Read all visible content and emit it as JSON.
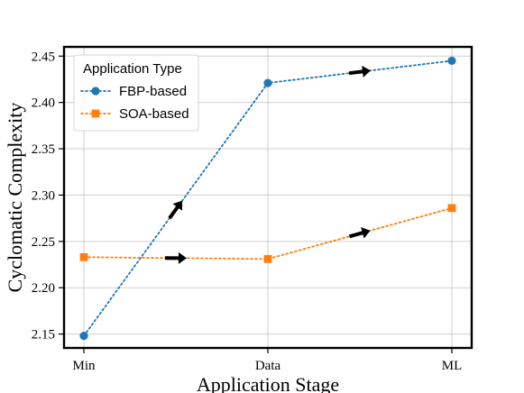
{
  "chart_data": {
    "type": "line",
    "categories": [
      "Min",
      "Data",
      "ML"
    ],
    "xlabel": "Application Stage",
    "ylabel": "Cyclomatic Complexity",
    "ylim": [
      2.135,
      2.46
    ],
    "yticks": [
      "2.15",
      "2.20",
      "2.25",
      "2.30",
      "2.35",
      "2.40",
      "2.45"
    ],
    "grid": true,
    "legend": {
      "title": "Application Type",
      "placement": "top-left"
    },
    "series": [
      {
        "name": "FBP-based",
        "values": [
          2.148,
          2.421,
          2.445
        ],
        "color": "#1f77b4",
        "marker": "circle",
        "linestyle": "dotted"
      },
      {
        "name": "SOA-based",
        "values": [
          2.233,
          2.231,
          2.286
        ],
        "color": "#ff7f0e",
        "marker": "square",
        "linestyle": "dotted"
      }
    ],
    "annotations": "direction arrows at segment midpoints"
  }
}
